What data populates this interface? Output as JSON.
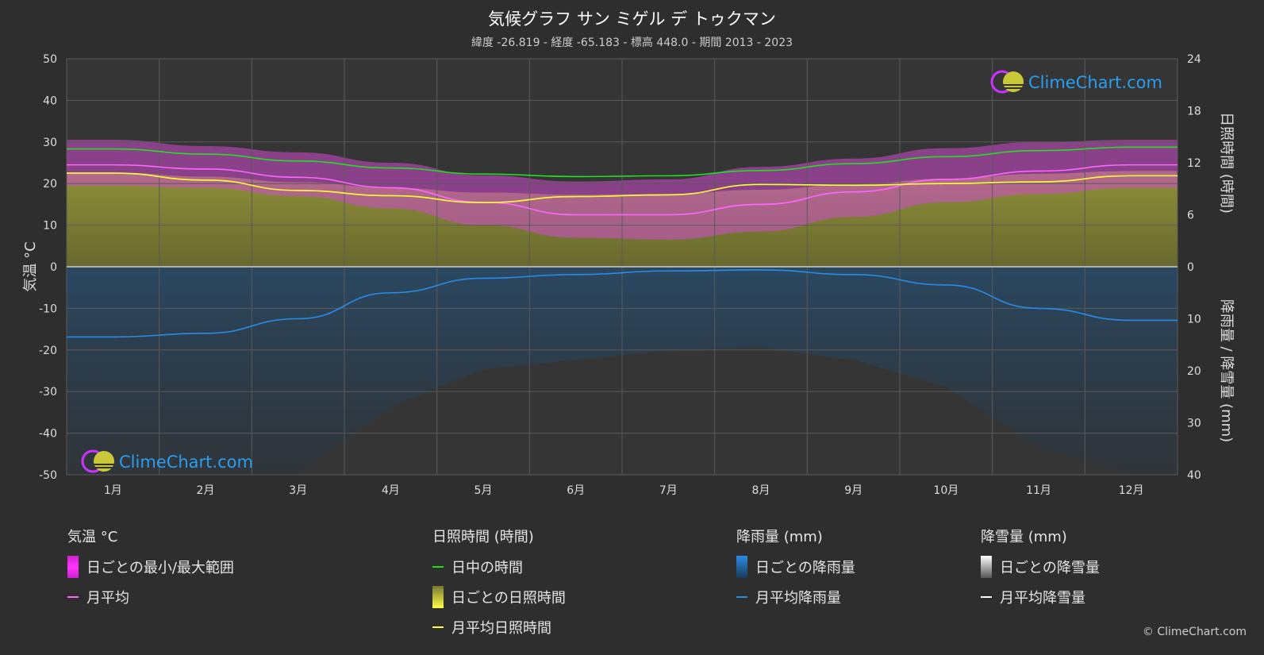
{
  "header": {
    "title": "気候グラフ サン ミゲル デ トゥクマン",
    "subtitle": "緯度 -26.819 - 経度 -65.183 - 標高 448.0 - 期間 2013 - 2023"
  },
  "chart_data": {
    "type": "line",
    "categories": [
      "1月",
      "2月",
      "3月",
      "4月",
      "5月",
      "6月",
      "7月",
      "8月",
      "9月",
      "10月",
      "11月",
      "12月"
    ],
    "axes": {
      "left_label": "気温 °C",
      "left_range": [
        -50,
        50
      ],
      "left_ticks": [
        "50",
        "40",
        "30",
        "20",
        "10",
        "0",
        "-10",
        "-20",
        "-30",
        "-40",
        "-50"
      ],
      "right_top_label": "日照時間 (時間)",
      "right_top_range": [
        0,
        24
      ],
      "right_top_ticks": [
        "24",
        "18",
        "12",
        "6",
        "0"
      ],
      "right_bottom_label": "降雨量 / 降雪量 (mm)",
      "right_bottom_range": [
        0,
        40
      ],
      "right_bottom_ticks": [
        "0",
        "10",
        "20",
        "30",
        "40"
      ]
    },
    "series": [
      {
        "name": "日中の時間",
        "unit": "hours",
        "color": "#22dd22",
        "values": [
          13.6,
          13.0,
          12.2,
          11.4,
          10.7,
          10.4,
          10.5,
          11.1,
          11.9,
          12.7,
          13.4,
          13.8
        ]
      },
      {
        "name": "月平均",
        "unit": "°C",
        "color": "#ff66ff",
        "values": [
          24.5,
          23.5,
          21.5,
          19.0,
          15.5,
          12.5,
          12.5,
          15.0,
          18.0,
          21.0,
          23.0,
          24.5
        ]
      },
      {
        "name": "月平均日照時間",
        "unit": "hours",
        "color": "#ffff33",
        "values": [
          10.8,
          10.0,
          8.8,
          8.2,
          7.4,
          8.1,
          8.3,
          9.5,
          9.4,
          9.6,
          9.8,
          10.5
        ]
      },
      {
        "name": "月平均降雨量",
        "unit": "mm",
        "color": "#2a8ce6",
        "values": [
          13.5,
          12.8,
          10.0,
          5.0,
          2.2,
          1.5,
          0.8,
          0.6,
          1.5,
          3.5,
          8.0,
          10.3
        ]
      },
      {
        "name": "日ごとの最小/最大範囲",
        "unit": "°C",
        "min": [
          19.5,
          19.0,
          17.0,
          14.0,
          10.0,
          7.0,
          6.5,
          8.5,
          12.0,
          15.5,
          17.5,
          19.0
        ],
        "max": [
          30.5,
          29.0,
          27.5,
          25.0,
          22.0,
          20.5,
          21.0,
          24.0,
          26.0,
          28.5,
          30.0,
          30.5
        ]
      }
    ],
    "grid": true,
    "colors": {
      "background": "#2e2e2e",
      "grid": "#555555",
      "temp_range": "#cc22cc",
      "sunshine": "#999933",
      "rain": "#1f6fb0"
    }
  },
  "watermark": {
    "text": "ClimeChart.com"
  },
  "legend": {
    "temp": {
      "heading": "気温 °C",
      "items": [
        "日ごとの最小/最大範囲",
        "月平均"
      ]
    },
    "sun": {
      "heading": "日照時間 (時間)",
      "items": [
        "日中の時間",
        "日ごとの日照時間",
        "月平均日照時間"
      ]
    },
    "rain": {
      "heading": "降雨量 (mm)",
      "items": [
        "日ごとの降雨量",
        "月平均降雨量"
      ]
    },
    "snow": {
      "heading": "降雪量 (mm)",
      "items": [
        "日ごとの降雪量",
        "月平均降雪量"
      ]
    }
  },
  "copyright": "© ClimeChart.com"
}
